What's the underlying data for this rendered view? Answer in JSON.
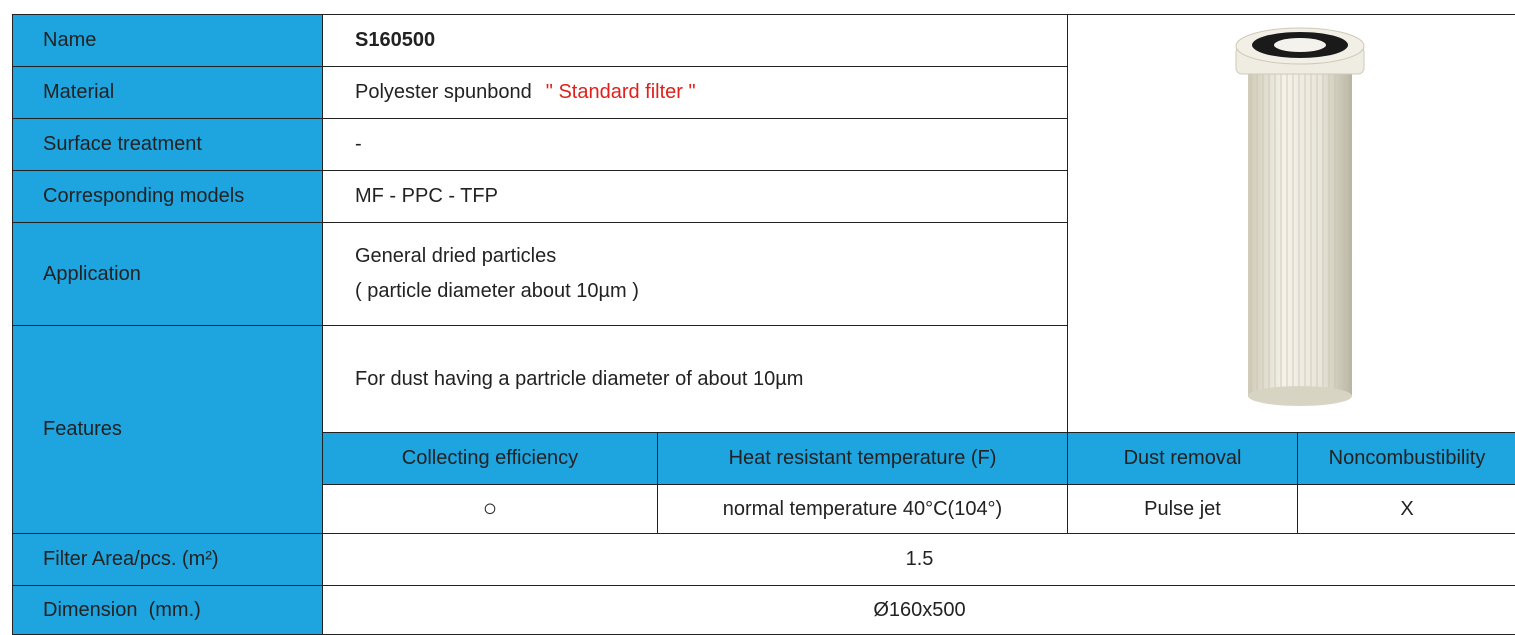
{
  "table": {
    "rows": [
      {
        "label": "Name",
        "value": "S160500"
      },
      {
        "label": "Material",
        "value": "Polyester spunbond",
        "note": "\" Standard filter \""
      },
      {
        "label": "Surface treatment",
        "value": "-"
      },
      {
        "label": "Corresponding models",
        "value": "MF - PPC - TFP"
      },
      {
        "label": "Application",
        "value": "General dried particles",
        "value_line2": "( particle diameter about 10µm )"
      },
      {
        "label": "Features",
        "value": "For dust having a partricle diameter of about 10µm"
      },
      {
        "label": "Filter Area/pcs. (m²)",
        "value": "1.5"
      },
      {
        "label": "Dimension  (mm.)",
        "value": "Ø160x500"
      }
    ],
    "features": {
      "headers": [
        "Collecting efficiency",
        "Heat resistant temperature (F)",
        "Dust removal",
        "Noncombustibility"
      ],
      "values": [
        "○",
        "normal temperature 40°C(104°)",
        "Pulse jet",
        "X"
      ]
    }
  }
}
